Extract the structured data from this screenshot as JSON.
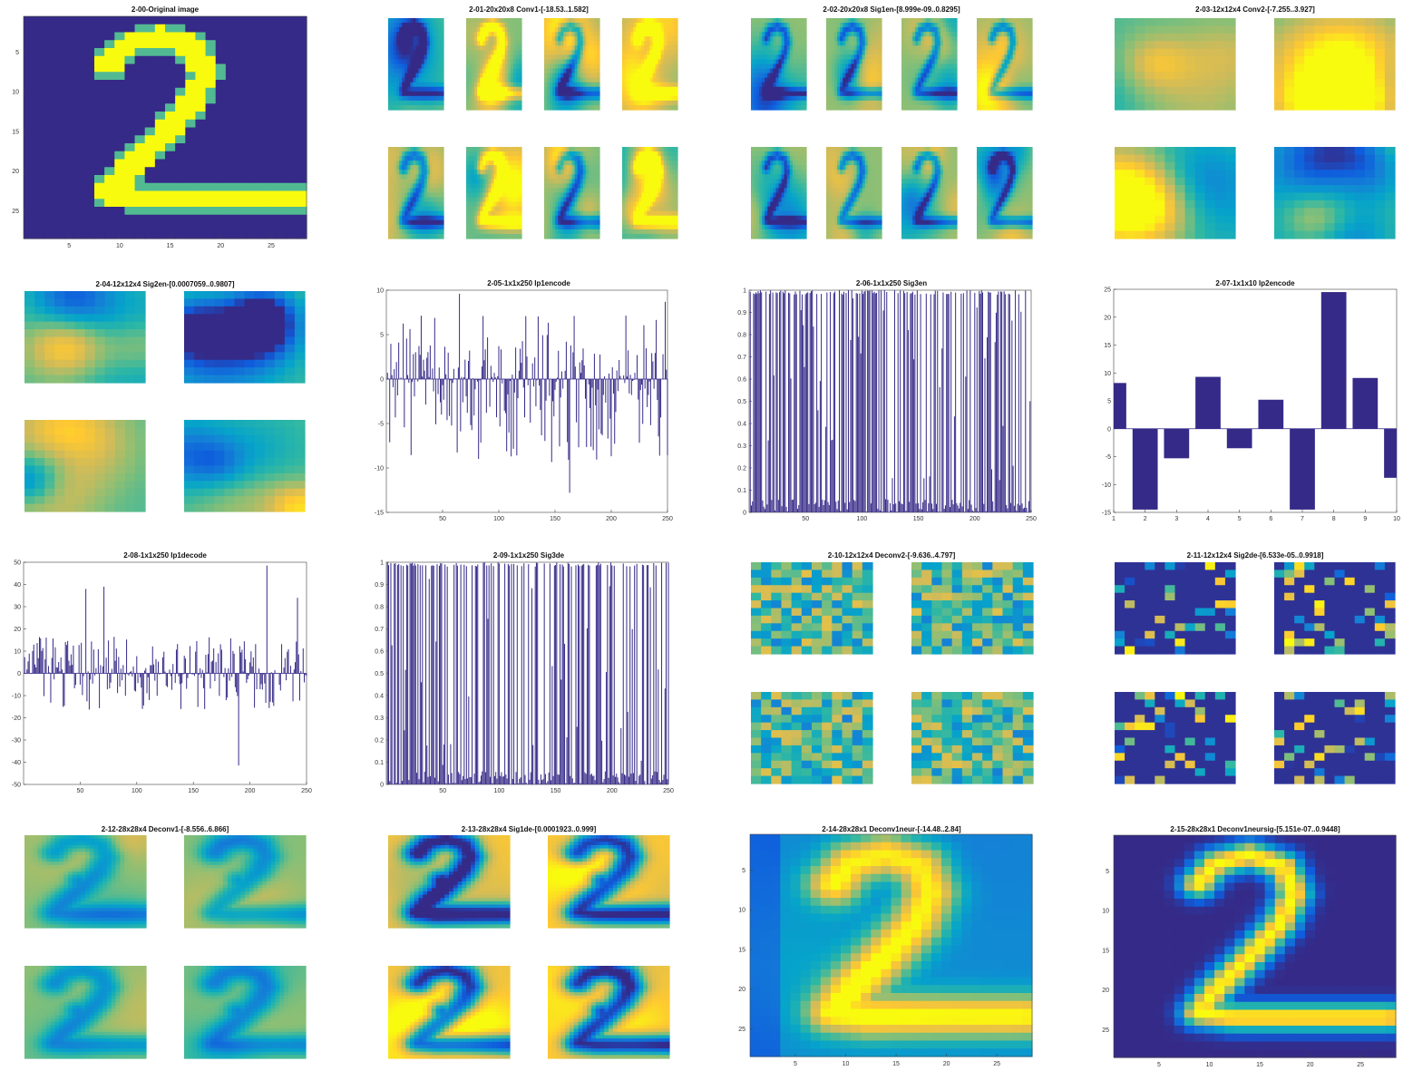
{
  "colormap": [
    "#352a87",
    "#0f5cdd",
    "#1481d6",
    "#06a4ca",
    "#2eb7a4",
    "#87bf77",
    "#d1bb59",
    "#fec832",
    "#f9fb0e"
  ],
  "panels": [
    {
      "title": "2-00-Original image",
      "kind": "image",
      "pattern": "digit2_sharp",
      "xticks": [
        "5",
        "10",
        "15",
        "20",
        "25"
      ],
      "yticks": [
        "5",
        "10",
        "15",
        "20",
        "25"
      ]
    },
    {
      "title": "2-01-20x20x8 Conv1-[-18.53..1.582]",
      "kind": "montage",
      "grid": [
        2,
        4
      ]
    },
    {
      "title": "2-02-20x20x8 Sig1en-[8.999e-09..0.8295]",
      "kind": "montage",
      "grid": [
        2,
        4
      ]
    },
    {
      "title": "2-03-12x12x4 Conv2-[-7.255..3.927]",
      "kind": "montage",
      "grid": [
        2,
        2
      ]
    },
    {
      "title": "2-04-12x12x4 Sig2en-[0.0007059..0.9807]",
      "kind": "montage",
      "grid": [
        2,
        2
      ]
    },
    {
      "title": "2-05-1x1x250 Ip1encode",
      "kind": "bar",
      "ylim": [
        -15,
        10
      ],
      "yticks": [
        "10",
        "5",
        "0",
        "-5",
        "-10",
        "-15"
      ],
      "xticks": [
        "50",
        "100",
        "150",
        "200",
        "250"
      ]
    },
    {
      "title": "2-06-1x1x250 Sig3en",
      "kind": "bar",
      "ylim": [
        0,
        1
      ],
      "yticks": [
        "1",
        "0.9",
        "0.8",
        "0.7",
        "0.6",
        "0.5",
        "0.4",
        "0.3",
        "0.2",
        "0.1",
        "0"
      ],
      "xticks": [
        "50",
        "100",
        "150",
        "200",
        "250"
      ]
    },
    {
      "title": "2-07-1x1x10 Ip2encode",
      "kind": "bar",
      "ylim": [
        -15,
        25
      ],
      "yticks": [
        "25",
        "20",
        "15",
        "10",
        "5",
        "0",
        "-5",
        "-10",
        "-15"
      ],
      "xticks": [
        "1",
        "2",
        "3",
        "4",
        "5",
        "6",
        "7",
        "8",
        "9",
        "10"
      ]
    },
    {
      "title": "2-08-1x1x250 Ip1decode",
      "kind": "bar",
      "ylim": [
        -50,
        50
      ],
      "yticks": [
        "50",
        "40",
        "30",
        "20",
        "10",
        "0",
        "-10",
        "-20",
        "-30",
        "-40",
        "-50"
      ],
      "xticks": [
        "50",
        "100",
        "150",
        "200",
        "250"
      ]
    },
    {
      "title": "2-09-1x1x250 Sig3de",
      "kind": "bar",
      "ylim": [
        0,
        1
      ],
      "yticks": [
        "1",
        "0.9",
        "0.8",
        "0.7",
        "0.6",
        "0.5",
        "0.4",
        "0.3",
        "0.2",
        "0.1",
        "0"
      ],
      "xticks": [
        "50",
        "100",
        "150",
        "200",
        "250"
      ]
    },
    {
      "title": "2-10-12x12x4 Deconv2-[-9.636..4.797]",
      "kind": "montage",
      "grid": [
        2,
        2
      ]
    },
    {
      "title": "2-11-12x12x4 Sig2de-[6.533e-05..0.9918]",
      "kind": "montage",
      "grid": [
        2,
        2
      ]
    },
    {
      "title": "2-12-28x28x4 Deconv1-[-8.556..6.866]",
      "kind": "montage",
      "grid": [
        2,
        2
      ]
    },
    {
      "title": "2-13-28x28x4 Sig1de-[0.0001923..0.999]",
      "kind": "montage",
      "grid": [
        2,
        2
      ]
    },
    {
      "title": "2-14-28x28x1 Deconv1neur-[-14.48..2.84]",
      "kind": "image",
      "pattern": "digit2_soft",
      "xticks": [
        "5",
        "10",
        "15",
        "20",
        "25"
      ],
      "yticks": [
        "5",
        "10",
        "15",
        "20",
        "25"
      ]
    },
    {
      "title": "2-15-28x28x1 Deconv1neursig-[5.151e-07..0.9448]",
      "kind": "image",
      "pattern": "digit2_blur",
      "xticks": [
        "5",
        "10",
        "15",
        "20",
        "25"
      ],
      "yticks": [
        "5",
        "10",
        "15",
        "20",
        "25"
      ]
    }
  ],
  "chart_data": [
    {
      "type": "heatmap",
      "title": "2-00-Original image",
      "xlim": [
        0.5,
        28.5
      ],
      "ylim": [
        0.5,
        28.5
      ],
      "xticks": [
        5,
        10,
        15,
        20,
        25
      ],
      "yticks": [
        5,
        10,
        15,
        20,
        25
      ]
    },
    {
      "type": "heatmap",
      "title": "2-01-20x20x8 Conv1-[-18.53..1.582]",
      "value_range": [
        -18.53,
        1.582
      ],
      "maps": 8
    },
    {
      "type": "heatmap",
      "title": "2-02-20x20x8 Sig1en-[8.999e-09..0.8295]",
      "value_range": [
        8.999e-09,
        0.8295
      ],
      "maps": 8
    },
    {
      "type": "heatmap",
      "title": "2-03-12x12x4 Conv2-[-7.255..3.927]",
      "value_range": [
        -7.255,
        3.927
      ],
      "maps": 4
    },
    {
      "type": "heatmap",
      "title": "2-04-12x12x4 Sig2en-[0.0007059..0.9807]",
      "value_range": [
        0.0007059,
        0.9807
      ],
      "maps": 4
    },
    {
      "type": "bar",
      "title": "2-05-1x1x250 Ip1encode",
      "n": 250,
      "xlim": [
        0,
        250
      ],
      "ylim": [
        -15,
        10
      ],
      "seed": 11,
      "generator": {
        "mode": "signed",
        "pos_max": 9.6,
        "neg_max": 12.8,
        "pos_prob": 0.5
      },
      "notable": [
        {
          "x": 65,
          "y": 9.6
        },
        {
          "x": 163,
          "y": -12.8
        },
        {
          "x": 248,
          "y": 8.7
        }
      ]
    },
    {
      "type": "bar",
      "title": "2-06-1x1x250 Sig3en",
      "n": 250,
      "xlim": [
        0,
        250
      ],
      "ylim": [
        0,
        1
      ],
      "seed": 23,
      "generator": {
        "mode": "sigmoid"
      }
    },
    {
      "type": "bar",
      "title": "2-07-1x1x10 Ip2encode",
      "categories": [
        "1",
        "2",
        "3",
        "4",
        "5",
        "6",
        "7",
        "8",
        "9",
        "10"
      ],
      "values": [
        8.2,
        -14.5,
        -5.3,
        9.3,
        -3.5,
        5.2,
        -14.5,
        24.5,
        9.1,
        -8.8
      ],
      "ylim": [
        -15,
        25
      ]
    },
    {
      "type": "bar",
      "title": "2-08-1x1x250 Ip1decode",
      "n": 250,
      "xlim": [
        0,
        250
      ],
      "ylim": [
        -50,
        50
      ],
      "seed": 37,
      "generator": {
        "mode": "signed",
        "pos_max": 22,
        "neg_max": 22,
        "pos_prob": 0.5
      },
      "notable": [
        {
          "x": 55,
          "y": 38
        },
        {
          "x": 71,
          "y": 39
        },
        {
          "x": 190,
          "y": -41.5
        },
        {
          "x": 215,
          "y": 48.5
        },
        {
          "x": 242,
          "y": 34
        }
      ]
    },
    {
      "type": "bar",
      "title": "2-09-1x1x250 Sig3de",
      "n": 250,
      "xlim": [
        0,
        250
      ],
      "ylim": [
        0,
        1
      ],
      "seed": 53,
      "generator": {
        "mode": "sigmoid"
      }
    },
    {
      "type": "heatmap",
      "title": "2-10-12x12x4 Deconv2-[-9.636..4.797]",
      "value_range": [
        -9.636,
        4.797
      ],
      "maps": 4
    },
    {
      "type": "heatmap",
      "title": "2-11-12x12x4 Sig2de-[6.533e-05..0.9918]",
      "value_range": [
        6.533e-05,
        0.9918
      ],
      "maps": 4
    },
    {
      "type": "heatmap",
      "title": "2-12-28x28x4 Deconv1-[-8.556..6.866]",
      "value_range": [
        -8.556,
        6.866
      ],
      "maps": 4
    },
    {
      "type": "heatmap",
      "title": "2-13-28x28x4 Sig1de-[0.0001923..0.999]",
      "value_range": [
        0.0001923,
        0.999
      ],
      "maps": 4
    },
    {
      "type": "heatmap",
      "title": "2-14-28x28x1 Deconv1neur-[-14.48..2.84]",
      "value_range": [
        -14.48,
        2.84
      ],
      "xlim": [
        0.5,
        28.5
      ],
      "ylim": [
        0.5,
        28.5
      ]
    },
    {
      "type": "heatmap",
      "title": "2-15-28x28x1 Deconv1neursig-[5.151e-07..0.9448]",
      "value_range": [
        5.151e-07,
        0.9448
      ],
      "xlim": [
        0.5,
        28.5
      ],
      "ylim": [
        0.5,
        28.5
      ]
    }
  ]
}
